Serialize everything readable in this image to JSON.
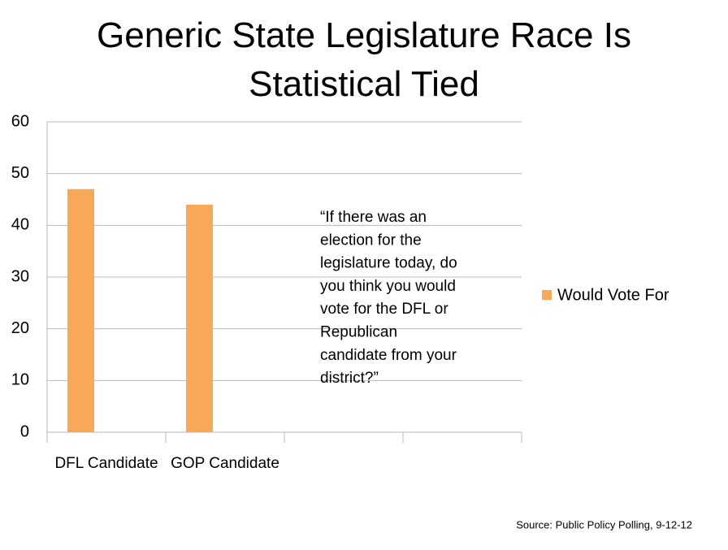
{
  "chart_data": {
    "type": "bar",
    "title": "Generic State Legislature Race Is Statistical Tied",
    "categories": [
      "DFL Candidate",
      "GOP Candidate",
      null,
      null
    ],
    "series": [
      {
        "name": "Would Vote For",
        "color": "#f8a957",
        "values": [
          47,
          44,
          null,
          null
        ]
      }
    ],
    "ylim": [
      0,
      60
    ],
    "yticks": [
      0,
      10,
      20,
      30,
      40,
      50,
      60
    ],
    "grid": true,
    "legend": "right",
    "annotation": [
      "“If there was an",
      "election for the",
      "legislature today, do",
      "you think you would",
      "vote for the DFL or",
      "Republican",
      "candidate from your",
      "district?”"
    ],
    "source": "Source:  Public Policy Polling, 9-12-12"
  }
}
